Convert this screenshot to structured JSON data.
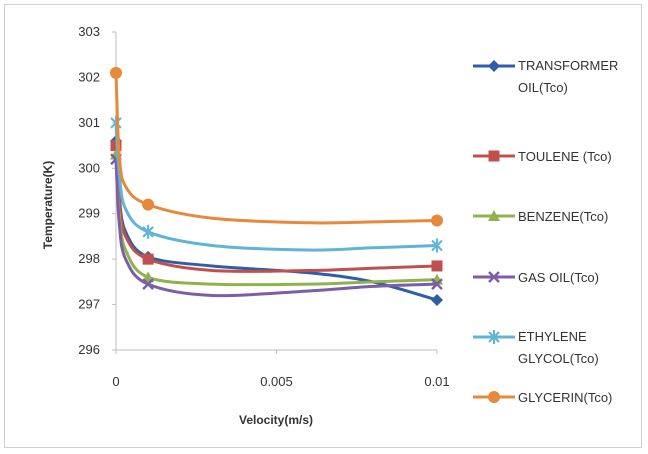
{
  "chart_data": {
    "type": "line",
    "title": "",
    "xlabel": "Velocity(m/s)",
    "ylabel": "Temperature(K)",
    "xlim": [
      0,
      0.01
    ],
    "ylim": [
      296,
      303
    ],
    "xticks": [
      "0",
      "0.005",
      "0.01"
    ],
    "xtick_values": [
      0,
      0.005,
      0.01
    ],
    "yticks": [
      "296",
      "297",
      "298",
      "299",
      "300",
      "301",
      "302",
      "303"
    ],
    "ytick_values": [
      296,
      297,
      298,
      299,
      300,
      301,
      302,
      303
    ],
    "grid": false,
    "legend_position": "right",
    "series": [
      {
        "name": "TRANSFORMER OIL(Tco)",
        "legend_lines": [
          "TRANSFORMER",
          "OIL(Tco)"
        ],
        "color": "#2f5ea8",
        "marker": "diamond",
        "points": [
          [
            0,
            300.6
          ],
          [
            0.0001,
            299.4
          ],
          [
            0.0003,
            298.6
          ],
          [
            0.001,
            298.05
          ],
          [
            0.003,
            297.85
          ],
          [
            0.006,
            297.7
          ],
          [
            0.008,
            297.5
          ],
          [
            0.01,
            297.1
          ]
        ],
        "marker_x": [
          0,
          0.001,
          0.01
        ]
      },
      {
        "name": "TOULENE (Tco)",
        "legend_lines": [
          "TOULENE (Tco)"
        ],
        "color": "#c0504d",
        "marker": "square",
        "points": [
          [
            0,
            300.5
          ],
          [
            0.0001,
            299.3
          ],
          [
            0.0003,
            298.5
          ],
          [
            0.001,
            298.0
          ],
          [
            0.003,
            297.75
          ],
          [
            0.006,
            297.75
          ],
          [
            0.008,
            297.8
          ],
          [
            0.01,
            297.85
          ]
        ],
        "marker_x": [
          0,
          0.001,
          0.01
        ]
      },
      {
        "name": "BENZENE(Tco)",
        "legend_lines": [
          "BENZENE(Tco)"
        ],
        "color": "#8fb34a",
        "marker": "triangle",
        "points": [
          [
            0,
            300.3
          ],
          [
            0.0001,
            299.0
          ],
          [
            0.0003,
            298.2
          ],
          [
            0.001,
            297.6
          ],
          [
            0.003,
            297.45
          ],
          [
            0.006,
            297.45
          ],
          [
            0.008,
            297.5
          ],
          [
            0.01,
            297.55
          ]
        ],
        "marker_x": [
          0,
          0.001,
          0.01
        ]
      },
      {
        "name": "GAS OIL(Tco)",
        "legend_lines": [
          "GAS OIL(Tco)"
        ],
        "color": "#7b5ea7",
        "marker": "x",
        "points": [
          [
            0,
            300.2
          ],
          [
            0.0001,
            298.8
          ],
          [
            0.0003,
            298.0
          ],
          [
            0.001,
            297.45
          ],
          [
            0.003,
            297.2
          ],
          [
            0.006,
            297.3
          ],
          [
            0.008,
            297.4
          ],
          [
            0.01,
            297.45
          ]
        ],
        "marker_x": [
          0,
          0.001,
          0.01
        ]
      },
      {
        "name": "ETHYLENE GLYCOL(Tco)",
        "legend_lines": [
          "ETHYLENE",
          "GLYCOL(Tco)"
        ],
        "color": "#5fb4d8",
        "marker": "star",
        "points": [
          [
            0,
            301.0
          ],
          [
            0.0001,
            299.9
          ],
          [
            0.0003,
            299.1
          ],
          [
            0.001,
            298.6
          ],
          [
            0.003,
            298.3
          ],
          [
            0.006,
            298.2
          ],
          [
            0.008,
            298.25
          ],
          [
            0.01,
            298.3
          ]
        ],
        "marker_x": [
          0,
          0.001,
          0.01
        ]
      },
      {
        "name": "GLYCERIN(Tco)",
        "legend_lines": [
          "GLYCERIN(Tco)"
        ],
        "color": "#e8883a",
        "marker": "circle",
        "points": [
          [
            0,
            302.1
          ],
          [
            0.0001,
            300.3
          ],
          [
            0.0003,
            299.6
          ],
          [
            0.001,
            299.2
          ],
          [
            0.003,
            298.9
          ],
          [
            0.006,
            298.8
          ],
          [
            0.008,
            298.82
          ],
          [
            0.01,
            298.85
          ]
        ],
        "marker_x": [
          0,
          0.001,
          0.01
        ]
      }
    ]
  }
}
